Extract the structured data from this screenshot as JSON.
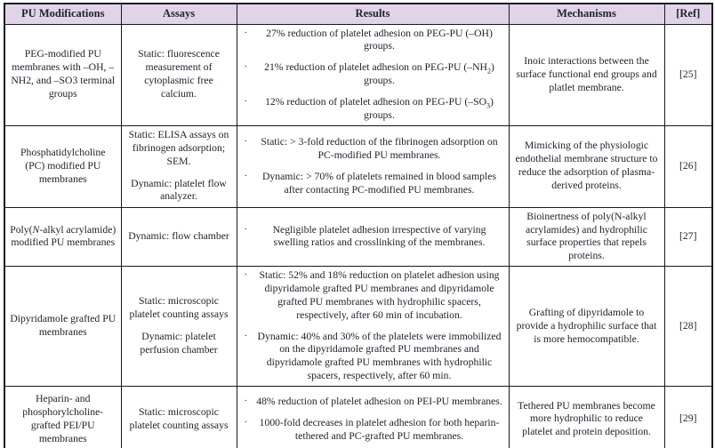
{
  "colors": {
    "header_bg": "#e2d4e8",
    "border": "#1c1722",
    "text": "#20242e"
  },
  "icons": {
    "bullet": "·"
  },
  "table": {
    "headers": [
      "PU Modifications",
      "Assays",
      "Results",
      "Mechanisms",
      "[Ref]"
    ],
    "rows": [
      {
        "modification": "PEG-modified PU membranes with –OH, –NH2, and –SO3 terminal groups",
        "assays": [
          "Static: fluorescence measurement of cytoplasmic free calcium."
        ],
        "results": [
          "27% reduction of platelet adhesion on PEG-PU (–OH) groups.",
          "21% reduction of platelet adhesion on PEG-PU (–NH<sub>2</sub>) groups.",
          "12% reduction of platelet adhesion on PEG-PU (–SO<sub>3</sub>) groups."
        ],
        "mechanism": "Inoic interactions between the surface functional end groups and platlet membrane.",
        "ref": "[25]"
      },
      {
        "modification": "Phosphatidylcholine (PC) modified PU membranes",
        "assays": [
          "Static: ELISA assays on fibrinogen adsorption; SEM.",
          "Dynamic: platelet flow analyzer."
        ],
        "results": [
          "Static: > 3-fold reduction of the fibrinogen adsorption on PC-modified PU membranes.",
          "Dynamic: > 70% of platelets remained in blood samples after contacting PC-modified PU membranes."
        ],
        "mechanism": "Mimicking of the physiologic endothelial membrane structure to reduce the adsorption of plasma-derived proteins.",
        "ref": "[26]"
      },
      {
        "modification": "Poly(<i>N</i>-alkyl acrylamide) modified PU membranes",
        "assays": [
          "Dynamic: flow chamber"
        ],
        "results": [
          "Negligible platelet adhesion irrespective of varying swelling ratios and crosslinking of the membranes."
        ],
        "mechanism": "Bioinertness of poly(N-alkyl acrylamides) and hydrophilic surface properties that repels proteins.",
        "ref": "[27]"
      },
      {
        "modification": "Dipyridamole grafted PU membranes",
        "assays": [
          "Static: microscopic platelet counting assays",
          "Dynamic: platelet perfusion chamber"
        ],
        "results": [
          "Static: 52% and 18% reduction on platelet adhesion using dipyridamole grafted PU membranes and dipyridamole grafted PU membranes with hydrophilic spacers, respectively, after 60 min of incubation.",
          "Dynamic: 40% and 30% of the platelets were immobilized on the dipyridamole grafted PU membranes and dipyridamole grafted PU membranes with hydrophilic spacers, respectively, after 60 min."
        ],
        "mechanism": "Grafting of dipyridamole to provide a hydrophilic surface that is more hemocompatible.",
        "ref": "[28]"
      },
      {
        "modification": "Heparin- and phosphorylcholine-grafted PEI/PU membranes",
        "assays": [
          "Static: microscopic platelet counting assays"
        ],
        "results": [
          "48% reduction of platelet adhesion on PEI-PU membranes.",
          "1000-fold decreases in platelet adhesion for both heparin-tethered and PC-grafted PU membranes."
        ],
        "mechanism": "Tethered PU membranes become more hydrophilic to reduce platelet and protein deposition.",
        "ref": "[29]"
      }
    ]
  }
}
